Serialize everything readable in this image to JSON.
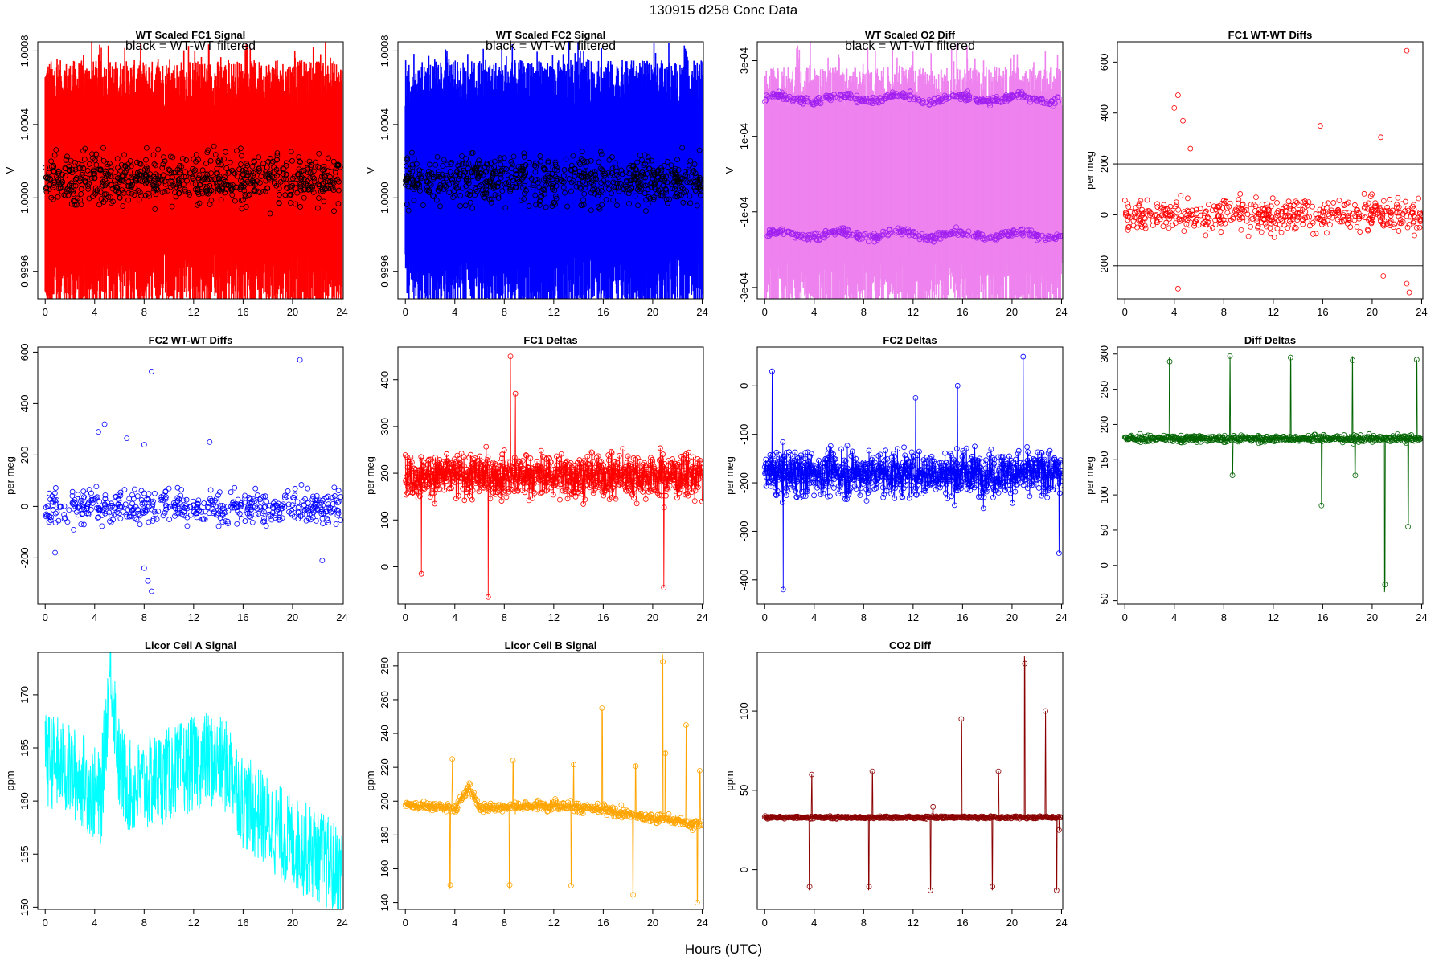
{
  "page": {
    "title": "130915    d258    Conc Data",
    "xlabel": "Hours (UTC)"
  },
  "chart_data": [
    {
      "id": "p1",
      "type": "line",
      "title": "WT Scaled FC1 Signal",
      "annotation": "black = WT-WT filtered",
      "ylabel": "V",
      "xlim": [
        -0.6,
        24.1
      ],
      "ylim": [
        0.99945,
        1.00085
      ],
      "xticks": [
        0,
        4,
        8,
        12,
        16,
        20,
        24
      ],
      "yticks": [
        0.9996,
        1.0,
        1.0004,
        1.0008
      ],
      "ytick_labels": [
        "0.9996",
        "1.0000",
        "1.0004",
        "1.0008"
      ],
      "series": [
        {
          "style": "band",
          "color": "#ff0000",
          "band_center": 1.00015,
          "band_low": 0.99945,
          "band_high": 1.00065,
          "spike_max": 1.00085,
          "n": 900
        },
        {
          "style": "points",
          "color": "#000000",
          "center": 1.0001,
          "spread": 0.00013,
          "n": 700
        }
      ]
    },
    {
      "id": "p2",
      "type": "line",
      "title": "WT Scaled FC2 Signal",
      "annotation": "black = WT-WT filtered",
      "ylabel": "V",
      "xlim": [
        -0.6,
        24.1
      ],
      "ylim": [
        0.99945,
        1.00085
      ],
      "xticks": [
        0,
        4,
        8,
        12,
        16,
        20,
        24
      ],
      "yticks": [
        0.9996,
        1.0,
        1.0004,
        1.0008
      ],
      "ytick_labels": [
        "0.9996",
        "1.0000",
        "1.0004",
        "1.0008"
      ],
      "series": [
        {
          "style": "band",
          "color": "#0000ff",
          "band_center": 1.00015,
          "band_low": 0.99945,
          "band_high": 1.00065,
          "spike_max": 1.00085,
          "n": 900
        },
        {
          "style": "points",
          "color": "#000000",
          "center": 1.0001,
          "spread": 0.00013,
          "n": 700
        }
      ]
    },
    {
      "id": "p3",
      "type": "line",
      "title": "WT Scaled O2 Diff",
      "annotation": "black = WT-WT filtered",
      "ylabel": "V",
      "xlim": [
        -0.6,
        24.1
      ],
      "ylim": [
        -0.00033,
        0.00035
      ],
      "xticks": [
        0,
        4,
        8,
        12,
        16,
        20,
        24
      ],
      "yticks": [
        -0.0003,
        -0.0001,
        0.0001,
        0.0003
      ],
      "ytick_labels": [
        "-3e-04",
        "-1e-04",
        "1e-04",
        "3e-04"
      ],
      "series": [
        {
          "style": "band",
          "color": "#ee82ee",
          "band_center": 0.0,
          "band_low": -0.00028,
          "band_high": 0.00029,
          "spike_max": 0.00035,
          "n": 900
        },
        {
          "style": "twolevel",
          "color": "#a020f0",
          "levels": [
            0.0002,
            -0.00016
          ],
          "spread": 1e-05,
          "n": 700
        }
      ]
    },
    {
      "id": "p4",
      "type": "scatter",
      "title": "FC1 WT-WT Diffs",
      "ylabel": "per meg",
      "xlim": [
        -0.6,
        24.1
      ],
      "ylim": [
        -330,
        680
      ],
      "xticks": [
        0,
        4,
        8,
        12,
        16,
        20,
        24
      ],
      "yticks": [
        -200,
        0,
        200,
        400,
        600
      ],
      "ytick_labels": [
        "-200",
        "0",
        "200",
        "400",
        "600"
      ],
      "hlines": [
        200,
        -200
      ],
      "series": [
        {
          "style": "scatter",
          "color": "#ff0000",
          "center": 0,
          "spread": 60,
          "n": 520,
          "outliers": [
            [
              4.0,
              420
            ],
            [
              4.3,
              470
            ],
            [
              4.7,
              370
            ],
            [
              5.3,
              260
            ],
            [
              15.8,
              350
            ],
            [
              20.7,
              305
            ],
            [
              22.8,
              645
            ],
            [
              20.9,
              -240
            ],
            [
              22.8,
              -270
            ],
            [
              23.0,
              -305
            ],
            [
              4.3,
              -290
            ]
          ]
        }
      ]
    },
    {
      "id": "p5",
      "type": "scatter",
      "title": "FC2 WT-WT Diffs",
      "ylabel": "per meg",
      "xlim": [
        -0.6,
        24.1
      ],
      "ylim": [
        -380,
        620
      ],
      "xticks": [
        0,
        4,
        8,
        12,
        16,
        20,
        24
      ],
      "yticks": [
        -200,
        0,
        200,
        400,
        600
      ],
      "ytick_labels": [
        "-200",
        "0",
        "200",
        "400",
        "600"
      ],
      "hlines": [
        200,
        -200
      ],
      "series": [
        {
          "style": "scatter",
          "color": "#0000ff",
          "center": 0,
          "spread": 65,
          "n": 520,
          "outliers": [
            [
              8.6,
              525
            ],
            [
              20.6,
              570
            ],
            [
              4.3,
              290
            ],
            [
              4.8,
              320
            ],
            [
              6.6,
              265
            ],
            [
              8.0,
              240
            ],
            [
              13.3,
              250
            ],
            [
              8.3,
              -290
            ],
            [
              8.6,
              -330
            ],
            [
              8.0,
              -240
            ],
            [
              22.4,
              -210
            ],
            [
              0.8,
              -180
            ]
          ]
        }
      ]
    },
    {
      "id": "p6",
      "type": "line",
      "title": "FC1 Deltas",
      "ylabel": "per meg",
      "xlim": [
        -0.6,
        24.1
      ],
      "ylim": [
        -80,
        470
      ],
      "xticks": [
        0,
        4,
        8,
        12,
        16,
        20,
        24
      ],
      "yticks": [
        0,
        100,
        200,
        300,
        400
      ],
      "ytick_labels": [
        "0",
        "100",
        "200",
        "300",
        "400"
      ],
      "series": [
        {
          "style": "noisy",
          "color": "#ff0000",
          "center": 195,
          "spread": 45,
          "n": 1000,
          "spikes": [
            [
              8.5,
              450
            ],
            [
              6.7,
              -65
            ],
            [
              20.9,
              -45
            ],
            [
              1.3,
              -15
            ],
            [
              8.9,
              370
            ]
          ]
        }
      ]
    },
    {
      "id": "p7",
      "type": "line",
      "title": "FC2 Deltas",
      "ylabel": "per meg",
      "xlim": [
        -0.6,
        24.1
      ],
      "ylim": [
        -450,
        80
      ],
      "xticks": [
        0,
        4,
        8,
        12,
        16,
        20,
        24
      ],
      "yticks": [
        -400,
        -300,
        -200,
        -100,
        0
      ],
      "ytick_labels": [
        "-400",
        "-300",
        "-200",
        "-100",
        "0"
      ],
      "series": [
        {
          "style": "noisy",
          "color": "#0000ff",
          "center": -180,
          "spread": 45,
          "n": 1000,
          "spikes": [
            [
              20.9,
              60
            ],
            [
              0.6,
              30
            ],
            [
              1.5,
              -420
            ],
            [
              12.2,
              -25
            ],
            [
              15.6,
              0
            ],
            [
              23.8,
              -345
            ]
          ]
        }
      ]
    },
    {
      "id": "p8",
      "type": "line",
      "title": "Diff Deltas",
      "ylabel": "per meg",
      "xlim": [
        -0.6,
        24.1
      ],
      "ylim": [
        -55,
        310
      ],
      "xticks": [
        0,
        4,
        8,
        12,
        16,
        20,
        24
      ],
      "yticks": [
        -50,
        0,
        50,
        100,
        150,
        200,
        250,
        300
      ],
      "ytick_labels": [
        "-50",
        "0",
        "50",
        "100",
        "150",
        "200",
        "250",
        "300"
      ],
      "series": [
        {
          "style": "baseline",
          "color": "#006400",
          "center": 180,
          "spread": 5,
          "n": 900,
          "excursions": [
            [
              3.6,
              295
            ],
            [
              8.5,
              297
            ],
            [
              8.7,
              128
            ],
            [
              13.4,
              295
            ],
            [
              15.9,
              85
            ],
            [
              18.4,
              297
            ],
            [
              18.6,
              125
            ],
            [
              21.0,
              -38
            ],
            [
              22.9,
              55
            ],
            [
              23.6,
              292
            ]
          ]
        }
      ]
    },
    {
      "id": "p9",
      "type": "line",
      "title": "Licor Cell A Signal",
      "ylabel": "ppm",
      "xlim": [
        -0.6,
        24.1
      ],
      "ylim": [
        149.8,
        174
      ],
      "xticks": [
        0,
        4,
        8,
        12,
        16,
        20,
        24
      ],
      "yticks": [
        150,
        155,
        160,
        165,
        170
      ],
      "ytick_labels": [
        "150",
        "155",
        "160",
        "165",
        "170"
      ],
      "series": [
        {
          "style": "trendband",
          "color": "#00ffff",
          "n": 900,
          "trend": [
            [
              0,
              164
            ],
            [
              1,
              163.5
            ],
            [
              3,
              162
            ],
            [
              4.5,
              160
            ],
            [
              5.3,
              173
            ],
            [
              6,
              163
            ],
            [
              7,
              161
            ],
            [
              9,
              162
            ],
            [
              11,
              163
            ],
            [
              13,
              164
            ],
            [
              15,
              163
            ],
            [
              16,
              160
            ],
            [
              18,
              158
            ],
            [
              20,
              156
            ],
            [
              22,
              155
            ],
            [
              24,
              153
            ]
          ],
          "halfwidth": 4.5
        }
      ]
    },
    {
      "id": "p10",
      "type": "line",
      "title": "Licor Cell B Signal",
      "ylabel": "ppm",
      "xlim": [
        -0.6,
        24.1
      ],
      "ylim": [
        136,
        288
      ],
      "xticks": [
        0,
        4,
        8,
        12,
        16,
        20,
        24
      ],
      "yticks": [
        140,
        160,
        180,
        200,
        220,
        240,
        260,
        280
      ],
      "ytick_labels": [
        "140",
        "160",
        "180",
        "200",
        "220",
        "240",
        "260",
        "280"
      ],
      "series": [
        {
          "style": "baseline",
          "color": "#ffa500",
          "center": 196,
          "spread": 3,
          "n": 900,
          "trend": [
            [
              0,
              198
            ],
            [
              4,
              196
            ],
            [
              5.2,
              208
            ],
            [
              6,
              196
            ],
            [
              12,
              198
            ],
            [
              16,
              195
            ],
            [
              20,
              190
            ],
            [
              24,
              186
            ]
          ],
          "excursions": [
            [
              3.6,
              148
            ],
            [
              3.8,
              225
            ],
            [
              8.4,
              148
            ],
            [
              8.7,
              224
            ],
            [
              13.4,
              150
            ],
            [
              13.6,
              223
            ],
            [
              15.9,
              255
            ],
            [
              18.4,
              142
            ],
            [
              18.6,
              222
            ],
            [
              20.8,
              287
            ],
            [
              21.0,
              230
            ],
            [
              22.7,
              245
            ],
            [
              23.6,
              140
            ],
            [
              23.8,
              218
            ]
          ]
        }
      ]
    },
    {
      "id": "p11",
      "type": "line",
      "title": "CO2 Diff",
      "ylabel": "ppm",
      "xlim": [
        -0.6,
        24.1
      ],
      "ylim": [
        -25,
        137
      ],
      "xticks": [
        0,
        4,
        8,
        12,
        16,
        20,
        24
      ],
      "yticks": [
        0,
        50,
        100
      ],
      "ytick_labels": [
        "0",
        "50",
        "100"
      ],
      "series": [
        {
          "style": "baseline",
          "color": "#8b0000",
          "center": 33,
          "spread": 0.7,
          "n": 900,
          "excursions": [
            [
              3.6,
              -13
            ],
            [
              3.8,
              60
            ],
            [
              8.4,
              -13
            ],
            [
              8.7,
              62
            ],
            [
              13.4,
              -13
            ],
            [
              13.6,
              40
            ],
            [
              15.9,
              95
            ],
            [
              18.4,
              -13
            ],
            [
              18.9,
              62
            ],
            [
              21.0,
              135
            ],
            [
              22.7,
              100
            ],
            [
              23.6,
              -13
            ],
            [
              23.8,
              25
            ]
          ]
        }
      ]
    }
  ]
}
